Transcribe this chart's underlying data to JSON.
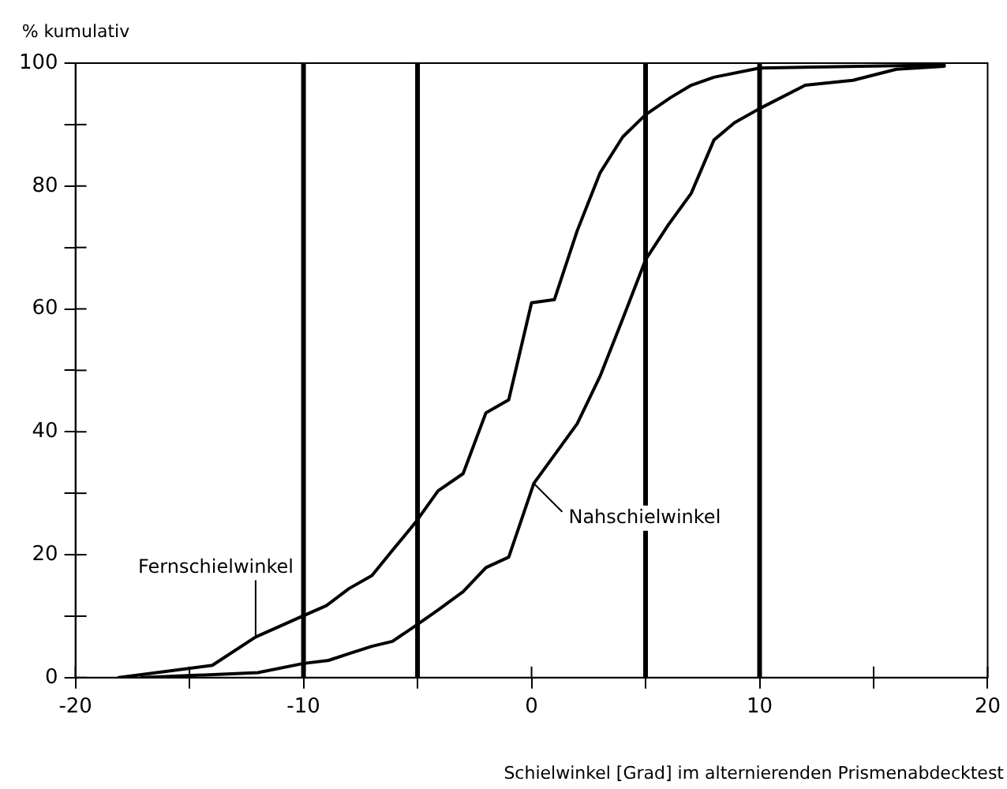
{
  "chart_data": {
    "type": "line",
    "xlabel": "Schielwinkel [Grad] im alternierenden Prismenabdecktest",
    "ylabel": "% kumulativ",
    "series": [
      {
        "name": "Fernschielwinkel",
        "color": "#000000",
        "x": [
          -18.1,
          -14,
          -12.1,
          -10.1,
          -9,
          -8,
          -7,
          -6.1,
          -5.1,
          -4.1,
          -3,
          -2,
          -1,
          0,
          1,
          2,
          3,
          4,
          5,
          6.1,
          7,
          8,
          10,
          18.1
        ],
        "values": [
          0,
          2,
          6.6,
          9.9,
          11.7,
          14.5,
          16.6,
          20.7,
          25.2,
          30.4,
          33.2,
          43.1,
          45.2,
          61,
          61.5,
          72.7,
          82.1,
          88,
          91.6,
          94.4,
          96.4,
          97.7,
          99.2,
          99.7
        ]
      },
      {
        "name": "Nahschielwinkel",
        "color": "#000000",
        "x": [
          -17.1,
          -12,
          -10,
          -8.9,
          -8,
          -7,
          -6.1,
          -5.1,
          -4.1,
          -3,
          -2,
          -1,
          0.1,
          2,
          3,
          4,
          5,
          6,
          7,
          8,
          8.9,
          10,
          12,
          14.1,
          16,
          18.1
        ],
        "values": [
          0,
          0.8,
          2.3,
          2.8,
          3.9,
          5.1,
          5.9,
          8.4,
          11,
          14,
          17.9,
          19.6,
          31.6,
          41.3,
          49,
          58.4,
          68,
          73.7,
          78.8,
          87.5,
          90.3,
          92.6,
          96.4,
          97.2,
          99,
          99.5
        ]
      }
    ],
    "xlim": [
      -20,
      20
    ],
    "xticks": [
      -20,
      {
        "value": -15,
        "label": null
      },
      -10,
      {
        "value": -5,
        "label": null
      },
      0,
      {
        "value": 5,
        "label": null
      },
      10,
      {
        "value": 15,
        "label": null
      },
      20
    ],
    "ylim": [
      0,
      100
    ],
    "yticks": [
      0,
      {
        "value": 10,
        "label": null
      },
      20,
      {
        "value": 30,
        "label": null
      },
      40,
      {
        "value": 50,
        "label": null
      },
      60,
      {
        "value": 70,
        "label": null
      },
      80,
      {
        "value": 90,
        "label": null
      },
      100
    ],
    "ref_lines": [
      {
        "axis": "x",
        "value": -10,
        "color": "#000000"
      },
      {
        "axis": "x",
        "value": -5,
        "color": "#000000"
      },
      {
        "axis": "x",
        "value": 5,
        "color": "#000000"
      },
      {
        "axis": "x",
        "value": 10,
        "color": "#000000"
      }
    ],
    "grid": false,
    "legend": false,
    "marker": "none",
    "line_style": "solid"
  }
}
